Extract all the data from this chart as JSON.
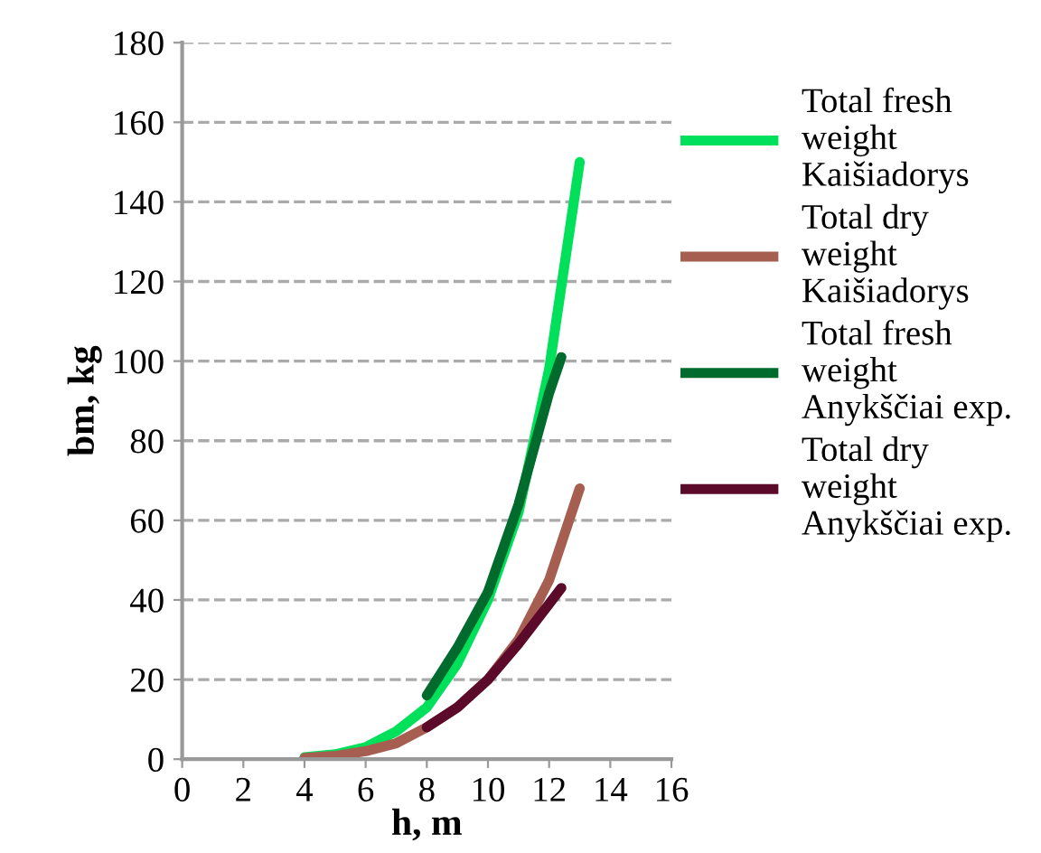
{
  "chart_data": {
    "type": "line",
    "xlabel": "h, m",
    "ylabel": "bm, kg",
    "xlim": [
      0,
      16
    ],
    "xticks": [
      0,
      2,
      4,
      6,
      8,
      10,
      12,
      14,
      16
    ],
    "ylim": [
      0,
      180
    ],
    "yticks": [
      0,
      20,
      40,
      60,
      80,
      100,
      120,
      140,
      160,
      180
    ],
    "grid": "y",
    "legend": "right",
    "marker": "none",
    "line_style": "solid",
    "series": [
      {
        "name": "Total fresh weight Kaišiadorys",
        "color": "#00e05a",
        "x": [
          4,
          5,
          6,
          7,
          8,
          9,
          10,
          11,
          12,
          13
        ],
        "values": [
          0.5,
          1.2,
          3,
          7,
          13,
          24,
          40,
          62,
          98,
          150
        ]
      },
      {
        "name": "Total dry weight Kaišiadorys",
        "color": "#a65e50",
        "x": [
          4,
          5,
          6,
          7,
          8,
          9,
          10,
          11,
          12,
          13
        ],
        "values": [
          0.3,
          0.8,
          2,
          4,
          8,
          13,
          20,
          30,
          45,
          68
        ]
      },
      {
        "name": "Total fresh weight Anykščiai exp.",
        "color": "#006b2c",
        "x": [
          8,
          9,
          10,
          11,
          12,
          12.4
        ],
        "values": [
          16,
          28,
          42,
          64,
          92,
          101
        ]
      },
      {
        "name": "Total dry weight Anykščiai exp.",
        "color": "#5c0a2a",
        "x": [
          8,
          9,
          10,
          11,
          12,
          12.4
        ],
        "values": [
          8,
          13,
          20,
          29,
          39,
          43
        ]
      }
    ]
  }
}
